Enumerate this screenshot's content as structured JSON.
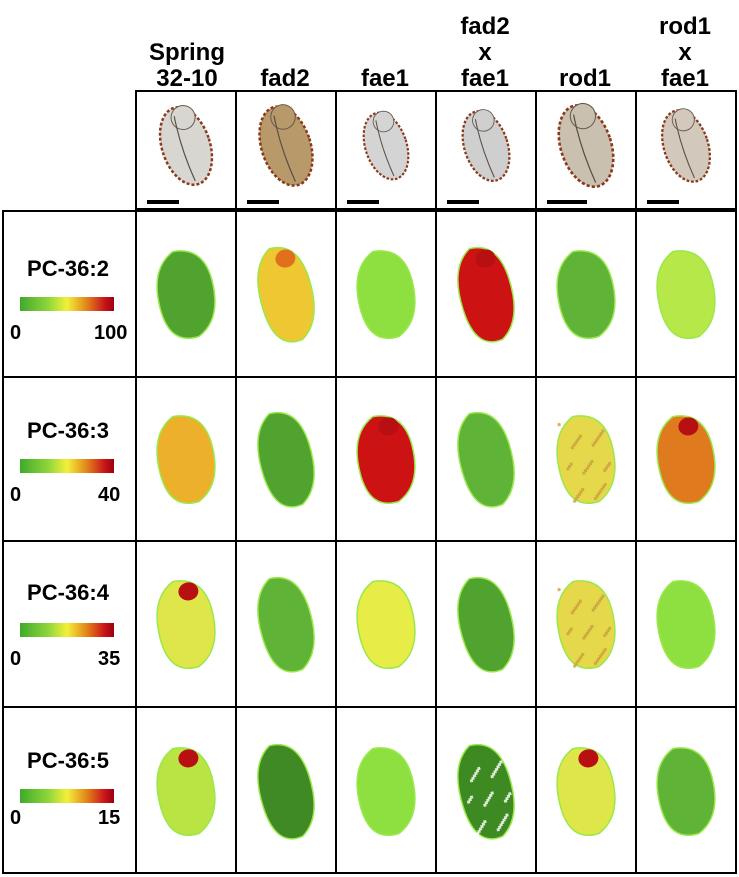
{
  "columns": [
    {
      "line1": "Spring",
      "line2": "32-10",
      "line3": ""
    },
    {
      "line1": "fad2",
      "line2": "",
      "line3": ""
    },
    {
      "line1": "fae1",
      "line2": "",
      "line3": ""
    },
    {
      "line1": "fad2",
      "line2": "x",
      "line3": "fae1"
    },
    {
      "line1": "rod1",
      "line2": "",
      "line3": ""
    },
    {
      "line1": "rod1",
      "line2": "x",
      "line3": "fae1"
    }
  ],
  "rows": [
    {
      "label": "PC-36:2",
      "min": "0",
      "max": "100",
      "levels": [
        "green-dark",
        "yellow-orange",
        "green-light",
        "red",
        "green-mid",
        "green-yellow"
      ]
    },
    {
      "label": "PC-36:3",
      "min": "0",
      "max": "40",
      "levels": [
        "orange",
        "green-dark",
        "red",
        "green-mid",
        "yellow-speckled",
        "orange-red"
      ]
    },
    {
      "label": "PC-36:4",
      "min": "0",
      "max": "35",
      "levels": [
        "yellow-redspot",
        "green-mid",
        "yellow",
        "green-dark",
        "yellow-speckled",
        "green-light"
      ]
    },
    {
      "label": "PC-36:5",
      "min": "0",
      "max": "15",
      "levels": [
        "lime-redspot",
        "green-deep",
        "green-light",
        "green-speckled",
        "yellow-redspot",
        "green-mid"
      ]
    }
  ],
  "colors": {
    "green-dark": "#4fa32e",
    "green-deep": "#3f8a25",
    "green-mid": "#5fb438",
    "green-light": "#8ee040",
    "green-yellow": "#b6e84a",
    "yellow": "#e8ec46",
    "yellow-orange": "#eec832",
    "orange": "#ecb02a",
    "orange-red": "#e07a1e",
    "red": "#cc1212",
    "lime-redspot": "#b9e443",
    "yellow-redspot": "#dfe64a",
    "yellow-speckled": "#e5d84a",
    "green-speckled": "#3d8a22",
    "accent-red": "#c0141a"
  }
}
